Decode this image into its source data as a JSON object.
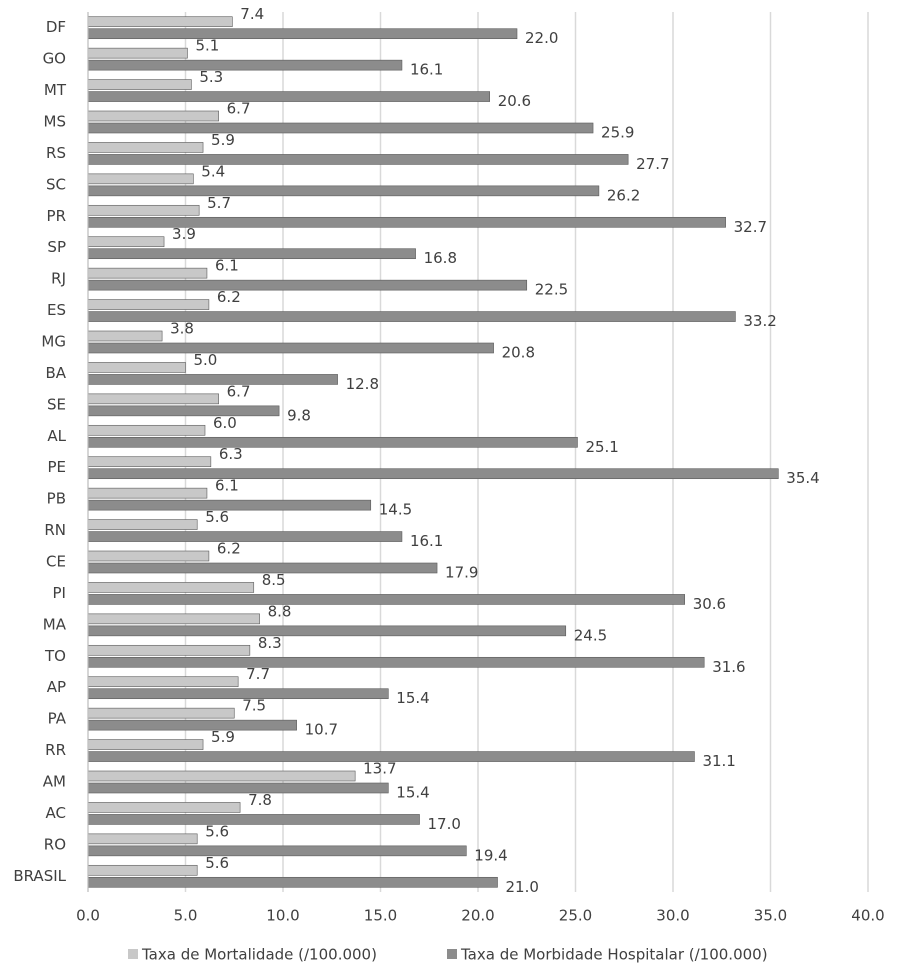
{
  "chart_data": {
    "type": "bar",
    "orientation": "horizontal",
    "categories": [
      "DF",
      "GO",
      "MT",
      "MS",
      "RS",
      "SC",
      "PR",
      "SP",
      "RJ",
      "ES",
      "MG",
      "BA",
      "SE",
      "AL",
      "PE",
      "PB",
      "RN",
      "CE",
      "PI",
      "MA",
      "TO",
      "AP",
      "PA",
      "RR",
      "AM",
      "AC",
      "RO",
      "BRASIL"
    ],
    "series": [
      {
        "name": "Taxa de Mortalidade (/100.000)",
        "color": "#c8c8c8",
        "values": [
          7.4,
          5.1,
          5.3,
          6.7,
          5.9,
          5.4,
          5.7,
          3.9,
          6.1,
          6.2,
          3.8,
          5.0,
          6.7,
          6.0,
          6.3,
          6.1,
          5.6,
          6.2,
          8.5,
          8.8,
          8.3,
          7.7,
          7.5,
          5.9,
          13.7,
          7.8,
          5.6,
          5.6
        ],
        "value_labels": [
          "7.4",
          "5.1",
          "5.3",
          "6.7",
          "5.9",
          "5.4",
          "5.7",
          "3.9",
          "6.1",
          "6.2",
          "3.8",
          "5.0",
          "6.7",
          "6.0",
          "6.3",
          "6.1",
          "5.6",
          "6.2",
          "8.5",
          "8.8",
          "8.3",
          "7.7",
          "7.5",
          "5.9",
          "13.7",
          "7.8",
          "5.6",
          "5.6"
        ]
      },
      {
        "name": "Taxa de Morbidade Hospitalar (/100.000)",
        "color": "#8c8c8c",
        "values": [
          22.0,
          16.1,
          20.6,
          25.9,
          27.7,
          26.2,
          32.7,
          16.8,
          22.5,
          33.2,
          20.8,
          12.8,
          9.8,
          25.1,
          35.4,
          14.5,
          16.1,
          17.9,
          30.6,
          24.5,
          31.6,
          15.4,
          10.7,
          31.1,
          15.4,
          17.0,
          19.4,
          21.0
        ],
        "value_labels": [
          "22.0",
          "16.1",
          "20.6",
          "25.9",
          "27.7",
          "26.2",
          "32.7",
          "16.8",
          "22.5",
          "33.2",
          "20.8",
          "12.8",
          "9.8",
          "25.1",
          "35.4",
          "14.5",
          "16.1",
          "17.9",
          "30.6",
          "24.5",
          "31.6",
          "15.4",
          "10.7",
          "31.1",
          "15.4",
          "17.0",
          "19.4",
          "21.0"
        ]
      }
    ],
    "xlim": [
      0,
      40
    ],
    "xticks": [
      {
        "value": 0,
        "label": "0.0"
      },
      {
        "value": 5,
        "label": "5.0"
      },
      {
        "value": 10,
        "label": "10.0"
      },
      {
        "value": 15,
        "label": "15.0"
      },
      {
        "value": 20,
        "label": "20.0"
      },
      {
        "value": 25,
        "label": "25.0"
      },
      {
        "value": 30,
        "label": "30.0"
      },
      {
        "value": 35,
        "label": "35.0"
      },
      {
        "value": 40,
        "label": "40.0"
      }
    ],
    "grid": true,
    "legend": "bottom"
  }
}
